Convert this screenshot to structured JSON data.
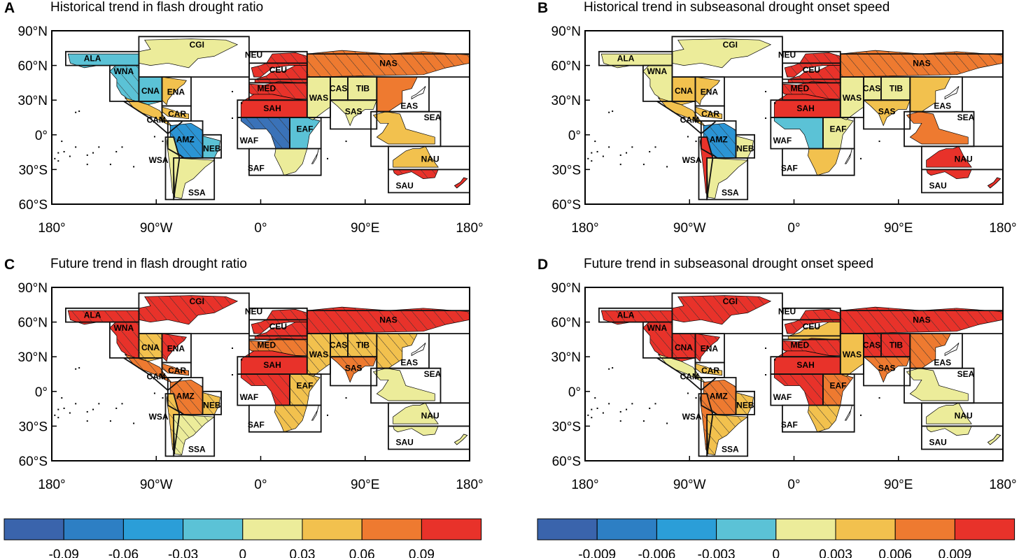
{
  "panels": [
    {
      "letter": "A",
      "title": "Historical trend in flash drought ratio",
      "fills": {
        "ALA": "#5bc2d6",
        "WNA": "#5bc2d6",
        "CNA": "#5bc2d6",
        "CGI": "#ecec9a",
        "ENA": "#f2c14e",
        "CAR": "#f2c14e",
        "CAM": "#f2c14e",
        "AMZ": "#2b94d4",
        "NEB": "#5bc2d6",
        "WSA": "#ecec9a",
        "SSA": "#ecec9a",
        "NEU": "#e8322a",
        "CEU": "#e8322a",
        "MED": "#e8322a",
        "SAH": "#e8322a",
        "WAF": "#3a72b8",
        "EAF": "#5bc2d6",
        "SAF": "#ecec9a",
        "NAS": "#ee7a30",
        "WAS": "#ecec9a",
        "CAS": "#ecec9a",
        "TIB": "#ecec9a",
        "EAS": "#ee7a30",
        "SAS": "#ecec9a",
        "SEA": "#f2c14e",
        "NAU": "#f2c14e",
        "SAU": "#e8322a"
      },
      "hatched": [
        "NEU",
        "CEU",
        "MED",
        "NAS",
        "WAF",
        "AMZ",
        "WNA",
        "SAU"
      ]
    },
    {
      "letter": "B",
      "title": "Historical trend in subseasonal drought onset speed",
      "fills": {
        "ALA": "#ecec9a",
        "WNA": "#ecec9a",
        "CNA": "#f2c14e",
        "CGI": "#ecec9a",
        "ENA": "#f2c14e",
        "CAR": "#f2c14e",
        "CAM": "#f2c14e",
        "AMZ": "#2b94d4",
        "NEB": "#ecec9a",
        "WSA": "#e8322a",
        "SSA": "#ecec9a",
        "NEU": "#e8322a",
        "CEU": "#e8322a",
        "MED": "#e8322a",
        "SAH": "#e8322a",
        "WAF": "#5bc2d6",
        "EAF": "#ecec9a",
        "SAF": "#f2c14e",
        "NAS": "#ee7a30",
        "WAS": "#ecec9a",
        "CAS": "#ecec9a",
        "TIB": "#ecec9a",
        "EAS": "#f2c14e",
        "SAS": "#f2c14e",
        "SEA": "#ee7a30",
        "NAU": "#e8322a",
        "SAU": "#e8322a"
      },
      "hatched": [
        "NEU",
        "CEU",
        "MED",
        "NAS",
        "AMZ"
      ]
    },
    {
      "letter": "C",
      "title": "Future trend in flash drought ratio",
      "fills": {
        "ALA": "#e8322a",
        "WNA": "#e8322a",
        "CNA": "#f2c14e",
        "CGI": "#e8322a",
        "ENA": "#e8322a",
        "CAR": "#ee7a30",
        "CAM": "#ee7a30",
        "AMZ": "#ee7a30",
        "NEB": "#f2c14e",
        "WSA": "#f2c14e",
        "SSA": "#ecec9a",
        "NEU": "#e8322a",
        "CEU": "#e8322a",
        "MED": "#ee7a30",
        "SAH": "#e8322a",
        "WAF": "#e8322a",
        "EAF": "#f2c14e",
        "SAF": "#f2c14e",
        "NAS": "#e8322a",
        "WAS": "#f2c14e",
        "CAS": "#f2c14e",
        "TIB": "#f2c14e",
        "EAS": "#f2c14e",
        "SAS": "#ee7a30",
        "SEA": "#ecec9a",
        "NAU": "#ecec9a",
        "SAU": "#ecec9a"
      },
      "hatched": [
        "ALA",
        "WNA",
        "CNA",
        "ENA",
        "CGI",
        "NEU",
        "CEU",
        "MED",
        "NAS",
        "WAS",
        "CAS",
        "TIB",
        "EAS",
        "SAS",
        "WAF",
        "EAF",
        "SAF",
        "AMZ",
        "SSA",
        "NEB",
        "WSA",
        "CAR",
        "CAM"
      ]
    },
    {
      "letter": "D",
      "title": "Future trend in subseasonal drought onset speed",
      "fills": {
        "ALA": "#e8322a",
        "WNA": "#e8322a",
        "CNA": "#e8322a",
        "CGI": "#e8322a",
        "ENA": "#e8322a",
        "CAR": "#f2c14e",
        "CAM": "#ecec9a",
        "AMZ": "#ee7a30",
        "NEB": "#f2c14e",
        "WSA": "#ee7a30",
        "SSA": "#f2c14e",
        "NEU": "#e8322a",
        "CEU": "#f2c14e",
        "MED": "#e8322a",
        "SAH": "#e8322a",
        "WAF": "#e8322a",
        "EAF": "#ee7a30",
        "SAF": "#f2c14e",
        "NAS": "#e8322a",
        "WAS": "#f2c14e",
        "CAS": "#e8322a",
        "TIB": "#e8322a",
        "EAS": "#ee7a30",
        "SAS": "#ee7a30",
        "SEA": "#ecec9a",
        "NAU": "#ecec9a",
        "SAU": "#ecec9a"
      },
      "hatched": [
        "ALA",
        "WNA",
        "CNA",
        "ENA",
        "CGI",
        "NEU",
        "MED",
        "NAS",
        "CAS",
        "TIB",
        "EAS",
        "SAS",
        "WAF",
        "EAF",
        "SAF",
        "AMZ",
        "SSA",
        "NEB",
        "WSA"
      ]
    }
  ],
  "axes": {
    "y_labels": [
      "90°N",
      "60°N",
      "30°N",
      "0°",
      "30°S",
      "60°S"
    ],
    "x_labels": [
      "180°",
      "90°W",
      "0°",
      "90°E",
      "180°"
    ]
  },
  "regions": [
    "ALA",
    "CGI",
    "WNA",
    "CNA",
    "ENA",
    "CAR",
    "CAM",
    "AMZ",
    "NEB",
    "WSA",
    "SSA",
    "NEU",
    "CEU",
    "MED",
    "SAH",
    "WAF",
    "EAF",
    "SAF",
    "NAS",
    "WAS",
    "CAS",
    "TIB",
    "SAS",
    "EAS",
    "SEA",
    "NAU",
    "SAU"
  ],
  "colorbars": [
    {
      "labels": [
        "-0.09",
        "-0.06",
        "-0.03",
        "0",
        "0.03",
        "0.06",
        "0.09"
      ]
    },
    {
      "labels": [
        "-0.009",
        "-0.006",
        "-0.003",
        "0",
        "0.003",
        "0.006",
        "0.009"
      ]
    }
  ],
  "colors": [
    "#3a64ac",
    "#2d7fc4",
    "#2b9ed8",
    "#5bc2d6",
    "#ecec9a",
    "#f2c14e",
    "#ee7a30",
    "#e8322a"
  ],
  "ocean_color": "#ffffff",
  "hatch_color": "#333333"
}
